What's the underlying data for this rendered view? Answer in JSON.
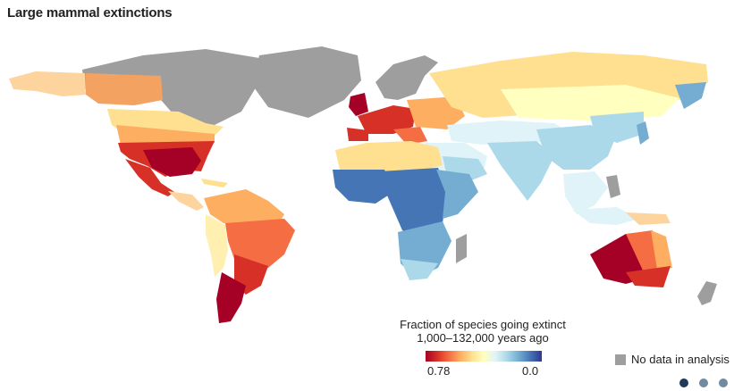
{
  "title": "Large mammal extinctions",
  "legend": {
    "title_line1": "Fraction of species going extinct",
    "title_line2": "1,000–132,000 years ago",
    "min_label": "0.78",
    "max_label": "0.0",
    "nodata_label": "No data in analysis"
  },
  "colors": {
    "nodata": "#9e9e9e",
    "dark_red": "#a50026",
    "red": "#d73027",
    "orange": "#f46d43",
    "light_orange": "#fdae61",
    "yellow": "#fee090",
    "pale": "#ffffbf",
    "pale_blue": "#e0f3f8",
    "light_blue": "#abd9e9",
    "mid_blue": "#74add1",
    "blue": "#4575b4",
    "dot_active": "#1f3b5c",
    "dot_inactive": "#6f8aa3"
  },
  "pagination": {
    "dots": [
      {
        "name": "page-dot-1",
        "active": true
      },
      {
        "name": "page-dot-2",
        "active": false
      },
      {
        "name": "page-dot-3",
        "active": false
      }
    ]
  }
}
